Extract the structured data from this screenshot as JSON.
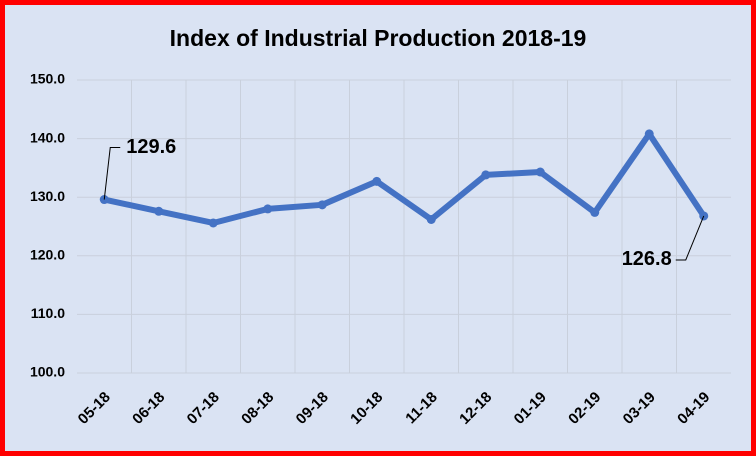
{
  "chart_data": {
    "type": "line",
    "title": "Index of Industrial Production 2018-19",
    "categories": [
      "05-18",
      "06-18",
      "07-18",
      "08-18",
      "09-18",
      "10-18",
      "11-18",
      "12-18",
      "01-19",
      "02-19",
      "03-19",
      "04-19"
    ],
    "series": [
      {
        "name": "Index of Industrial Production",
        "color": "#4472c4",
        "values": [
          129.6,
          127.6,
          125.6,
          128.0,
          128.7,
          132.7,
          126.2,
          133.8,
          134.3,
          127.4,
          140.8,
          126.8
        ]
      }
    ],
    "ylim": [
      100,
      150
    ],
    "yticks": [
      {
        "value": 100,
        "label": "100.0"
      },
      {
        "value": 110,
        "label": "110.0"
      },
      {
        "value": 120,
        "label": "120.0"
      },
      {
        "value": 130,
        "label": "130.0"
      },
      {
        "value": 140,
        "label": "140.0"
      },
      {
        "value": 150,
        "label": "150.0"
      }
    ],
    "grid": true
  }
}
